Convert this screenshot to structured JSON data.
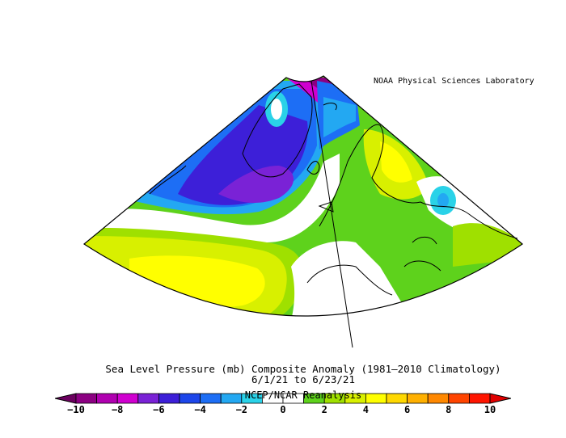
{
  "credit": "NOAA Physical Sciences Laboratory",
  "title": "Sea Level Pressure (mb) Composite Anomaly (1981–2010 Climatology)",
  "date_range": "6/1/21  to 6/23/21",
  "source": "NCEP/NCAR Reanalysis",
  "colorbar": {
    "ticks": [
      "−10",
      "−8",
      "−6",
      "−4",
      "−2",
      "0",
      "2",
      "4",
      "6",
      "8",
      "10"
    ],
    "colors": [
      "#6b005f",
      "#8c0082",
      "#b000b0",
      "#d000d0",
      "#7a22d6",
      "#3d1fd8",
      "#1d46ea",
      "#1d6ef5",
      "#23a8f2",
      "#2ad2e8",
      "#ffffff",
      "#ffffff",
      "#5ed21c",
      "#9fe000",
      "#d8f000",
      "#ffff00",
      "#ffd800",
      "#ffb000",
      "#ff8800",
      "#ff4400",
      "#ff1500",
      "#e00000"
    ]
  },
  "regions": {
    "greenland_low": "blue-purple anomaly",
    "atlantic_high": "yellow anomaly",
    "europe": "green anomaly",
    "eastern_med_spot": "light-blue anomaly"
  }
}
